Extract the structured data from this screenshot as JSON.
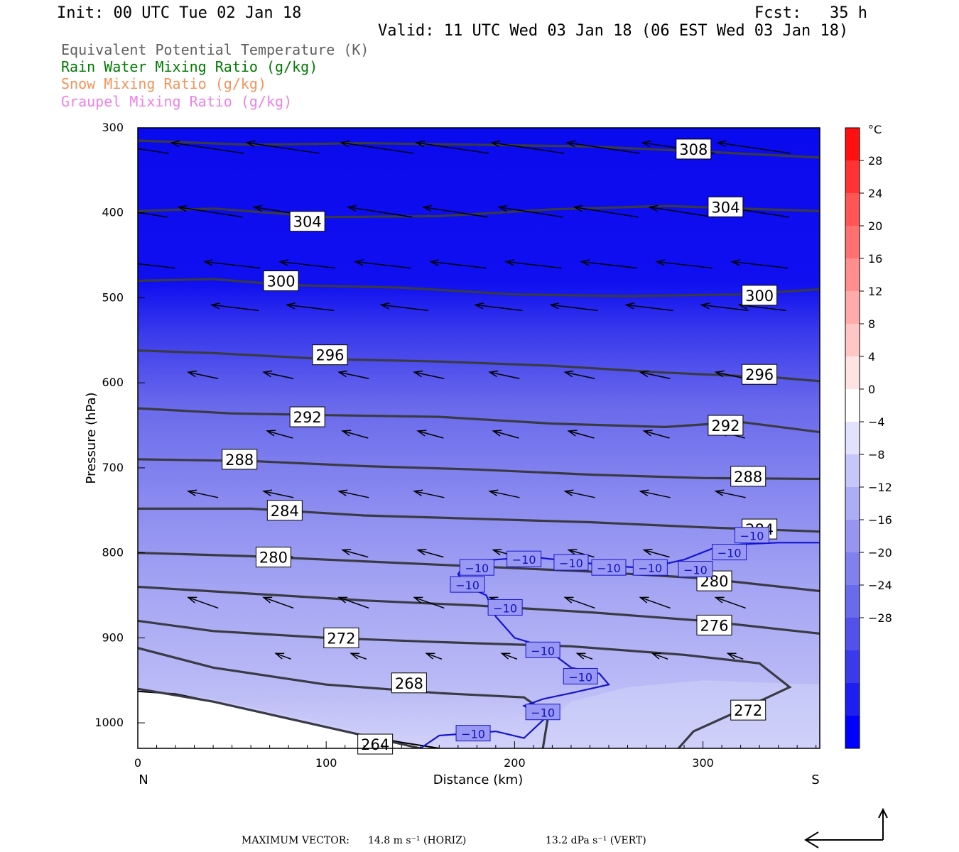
{
  "header": {
    "init": "Init: 00 UTC Tue 02 Jan 18",
    "fcst": "Fcst:   35 h",
    "valid": "Valid: 11 UTC Wed 03 Jan 18 (06 EST Wed 03 Jan 18)"
  },
  "legend": [
    {
      "text": "Equivalent Potential Temperature (K)",
      "color": "#606060"
    },
    {
      "text": "Rain Water Mixing Ratio (g/kg)",
      "color": "#007a00"
    },
    {
      "text": "Snow Mixing Ratio (g/kg)",
      "color": "#f4935a"
    },
    {
      "text": "Graupel Mixing Ratio (g/kg)",
      "color": "#f080e8"
    }
  ],
  "footer": {
    "max_vector_label": "MAXIMUM VECTOR:",
    "horiz": "14.8 m s⁻¹ (HORIZ)",
    "vert": "13.2 dPa s⁻¹ (VERT)"
  },
  "chart_data": {
    "type": "heatmap",
    "xlabel": "Distance (km)",
    "ylabel": "Pressure (hPa)",
    "xlim": [
      0,
      362
    ],
    "ylim": [
      1030,
      300
    ],
    "x_ticks": [
      0,
      100,
      200,
      300
    ],
    "y_ticks": [
      300,
      400,
      500,
      600,
      700,
      800,
      900,
      1000
    ],
    "x_end_labels": {
      "left": "N",
      "right": "S"
    },
    "colorbar": {
      "unit": "°C",
      "tick_labels": [
        "28",
        "24",
        "20",
        "16",
        "12",
        "8",
        "4",
        "0",
        "−4",
        "−8",
        "−12",
        "−16",
        "−20",
        "−24",
        "−28"
      ],
      "colors": [
        "#ff1010",
        "#ff3333",
        "#ff5555",
        "#ff7070",
        "#ff8e8e",
        "#ffabab",
        "#ffc6c6",
        "#ffe2e2",
        "#ffffff",
        "#e2e2ff",
        "#c6c6fa",
        "#adadf5",
        "#9696f2",
        "#8080ee",
        "#6a6aec",
        "#5252ea",
        "#3a3aec",
        "#1e1ef0",
        "#0000ff"
      ]
    },
    "theta_e_contours": [
      {
        "value": 308,
        "points": [
          [
            0,
            315
          ],
          [
            60,
            320
          ],
          [
            120,
            318
          ],
          [
            180,
            320
          ],
          [
            240,
            322
          ],
          [
            300,
            328
          ],
          [
            362,
            335
          ]
        ]
      },
      {
        "value": 304,
        "points": [
          [
            0,
            398
          ],
          [
            40,
            395
          ],
          [
            100,
            405
          ],
          [
            160,
            404
          ],
          [
            220,
            396
          ],
          [
            280,
            392
          ],
          [
            362,
            398
          ]
        ]
      },
      {
        "value": 300,
        "points": [
          [
            0,
            480
          ],
          [
            40,
            478
          ],
          [
            80,
            485
          ],
          [
            140,
            488
          ],
          [
            200,
            496
          ],
          [
            260,
            498
          ],
          [
            320,
            496
          ],
          [
            362,
            490
          ]
        ]
      },
      {
        "value": 296,
        "points": [
          [
            0,
            562
          ],
          [
            40,
            565
          ],
          [
            100,
            572
          ],
          [
            160,
            575
          ],
          [
            220,
            580
          ],
          [
            280,
            588
          ],
          [
            340,
            594
          ],
          [
            362,
            598
          ]
        ]
      },
      {
        "value": 292,
        "points": [
          [
            0,
            630
          ],
          [
            50,
            636
          ],
          [
            100,
            638
          ],
          [
            160,
            640
          ],
          [
            220,
            648
          ],
          [
            280,
            652
          ],
          [
            320,
            646
          ],
          [
            362,
            658
          ]
        ]
      },
      {
        "value": 288,
        "points": [
          [
            0,
            690
          ],
          [
            60,
            692
          ],
          [
            120,
            698
          ],
          [
            180,
            702
          ],
          [
            240,
            708
          ],
          [
            300,
            712
          ],
          [
            362,
            713
          ]
        ]
      },
      {
        "value": 284,
        "points": [
          [
            0,
            748
          ],
          [
            60,
            748
          ],
          [
            120,
            756
          ],
          [
            180,
            760
          ],
          [
            240,
            764
          ],
          [
            300,
            770
          ],
          [
            362,
            775
          ]
        ]
      },
      {
        "value": 280,
        "points": [
          [
            0,
            800
          ],
          [
            60,
            804
          ],
          [
            120,
            810
          ],
          [
            180,
            816
          ],
          [
            240,
            822
          ],
          [
            300,
            830
          ],
          [
            362,
            845
          ]
        ]
      },
      {
        "value": 276,
        "points": [
          [
            0,
            840
          ],
          [
            60,
            848
          ],
          [
            120,
            856
          ],
          [
            180,
            862
          ],
          [
            240,
            870
          ],
          [
            300,
            880
          ],
          [
            362,
            895
          ]
        ]
      },
      {
        "value": 272,
        "points": [
          [
            0,
            880
          ],
          [
            40,
            892
          ],
          [
            100,
            900
          ],
          [
            160,
            905
          ],
          [
            230,
            910
          ],
          [
            290,
            920
          ],
          [
            330,
            930
          ],
          [
            346,
            958
          ],
          [
            320,
            985
          ],
          [
            295,
            1010
          ],
          [
            287,
            1030
          ]
        ]
      },
      {
        "value": 268,
        "points": [
          [
            0,
            912
          ],
          [
            40,
            935
          ],
          [
            100,
            955
          ],
          [
            160,
            965
          ],
          [
            205,
            970
          ],
          [
            218,
            990
          ],
          [
            215,
            1030
          ]
        ]
      },
      {
        "value": 264,
        "points": [
          [
            0,
            960
          ],
          [
            40,
            975
          ],
          [
            90,
            1000
          ],
          [
            130,
            1020
          ],
          [
            150,
            1030
          ]
        ]
      }
    ],
    "temperature_contours": [
      {
        "value": -10,
        "points": [
          [
            150,
            1030
          ],
          [
            160,
            1015
          ],
          [
            190,
            1010
          ],
          [
            205,
            1018
          ],
          [
            216,
            995
          ],
          [
            205,
            980
          ],
          [
            215,
            972
          ],
          [
            230,
            965
          ],
          [
            250,
            955
          ],
          [
            245,
            942
          ],
          [
            230,
            935
          ],
          [
            215,
            910
          ],
          [
            200,
            900
          ],
          [
            190,
            875
          ],
          [
            185,
            850
          ],
          [
            175,
            840
          ],
          [
            170,
            825
          ],
          [
            175,
            810
          ],
          [
            190,
            808
          ],
          [
            210,
            805
          ],
          [
            230,
            810
          ],
          [
            250,
            815
          ],
          [
            270,
            818
          ],
          [
            290,
            808
          ],
          [
            305,
            795
          ],
          [
            320,
            790
          ],
          [
            340,
            788
          ],
          [
            362,
            788
          ]
        ]
      }
    ]
  }
}
